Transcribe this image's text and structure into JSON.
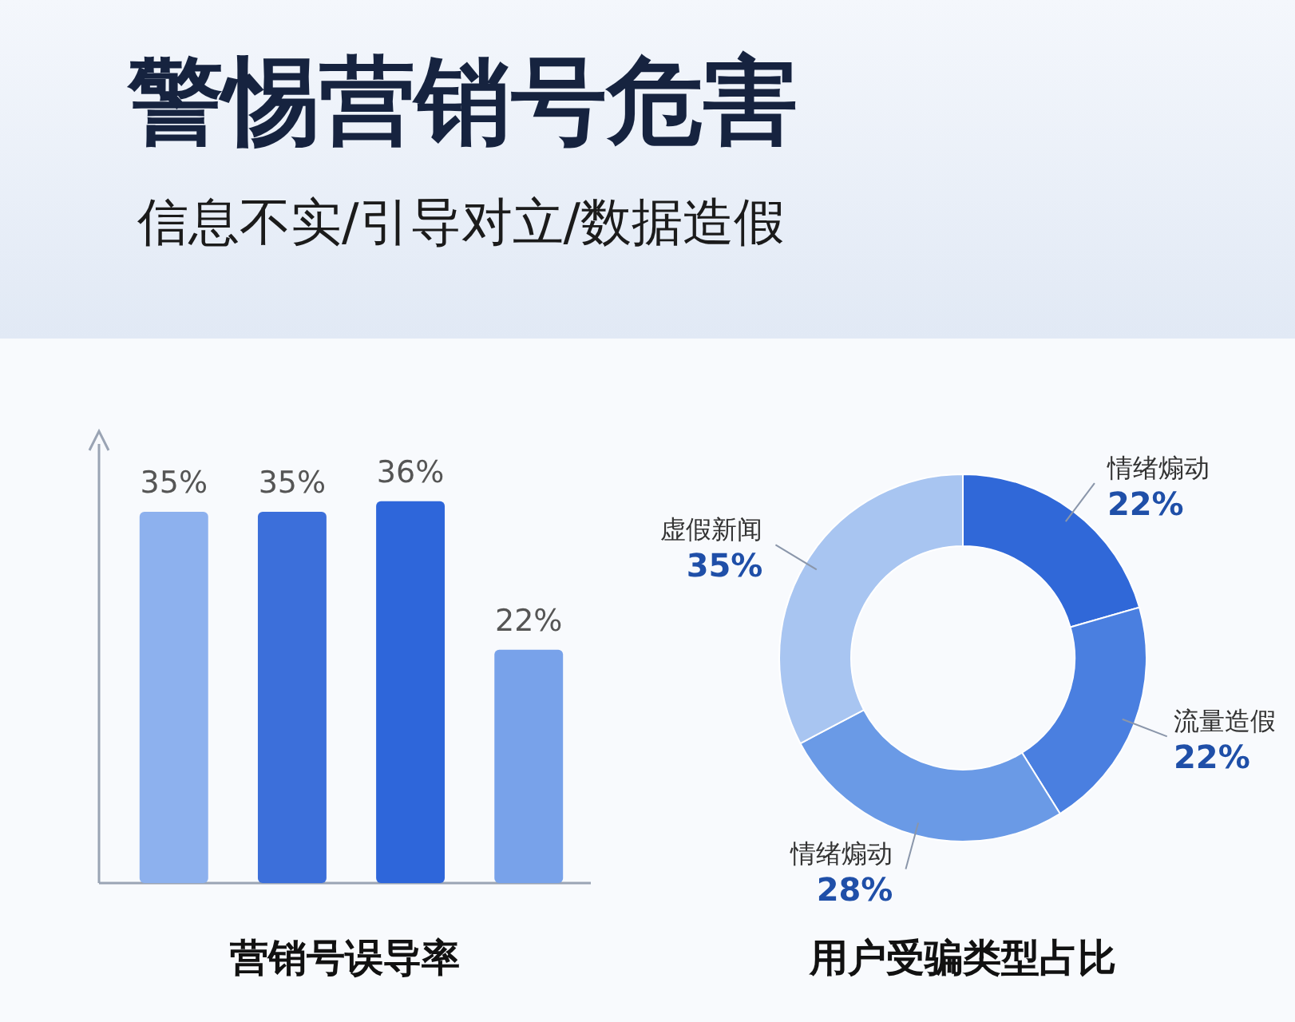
{
  "chart_data": [
    {
      "type": "other",
      "title": "警惕营销号危害",
      "subtitle": "信息不实/引导对立/数据造假"
    },
    {
      "type": "bar",
      "title": "营销号误导率",
      "categories": [
        null,
        null,
        null,
        null
      ],
      "values": [
        35,
        35,
        36,
        22
      ],
      "value_labels": [
        "35%",
        "35%",
        "36%",
        "22%"
      ],
      "colors": [
        "#8db1ee",
        "#3c6fda",
        "#2e66da",
        "#78a2ea"
      ]
    },
    {
      "type": "donut",
      "title": "用户受骗类型占比",
      "categories": [
        "情绪煽动",
        "流量造假",
        "情绪煽动",
        "虚假新闻"
      ],
      "values": [
        22,
        22,
        28,
        35
      ],
      "value_labels": [
        "22%",
        "22%",
        "28%",
        "35%"
      ],
      "colors": [
        "#3068d8",
        "#4a7fe0",
        "#6a9ae6",
        "#a8c5f1"
      ]
    }
  ]
}
